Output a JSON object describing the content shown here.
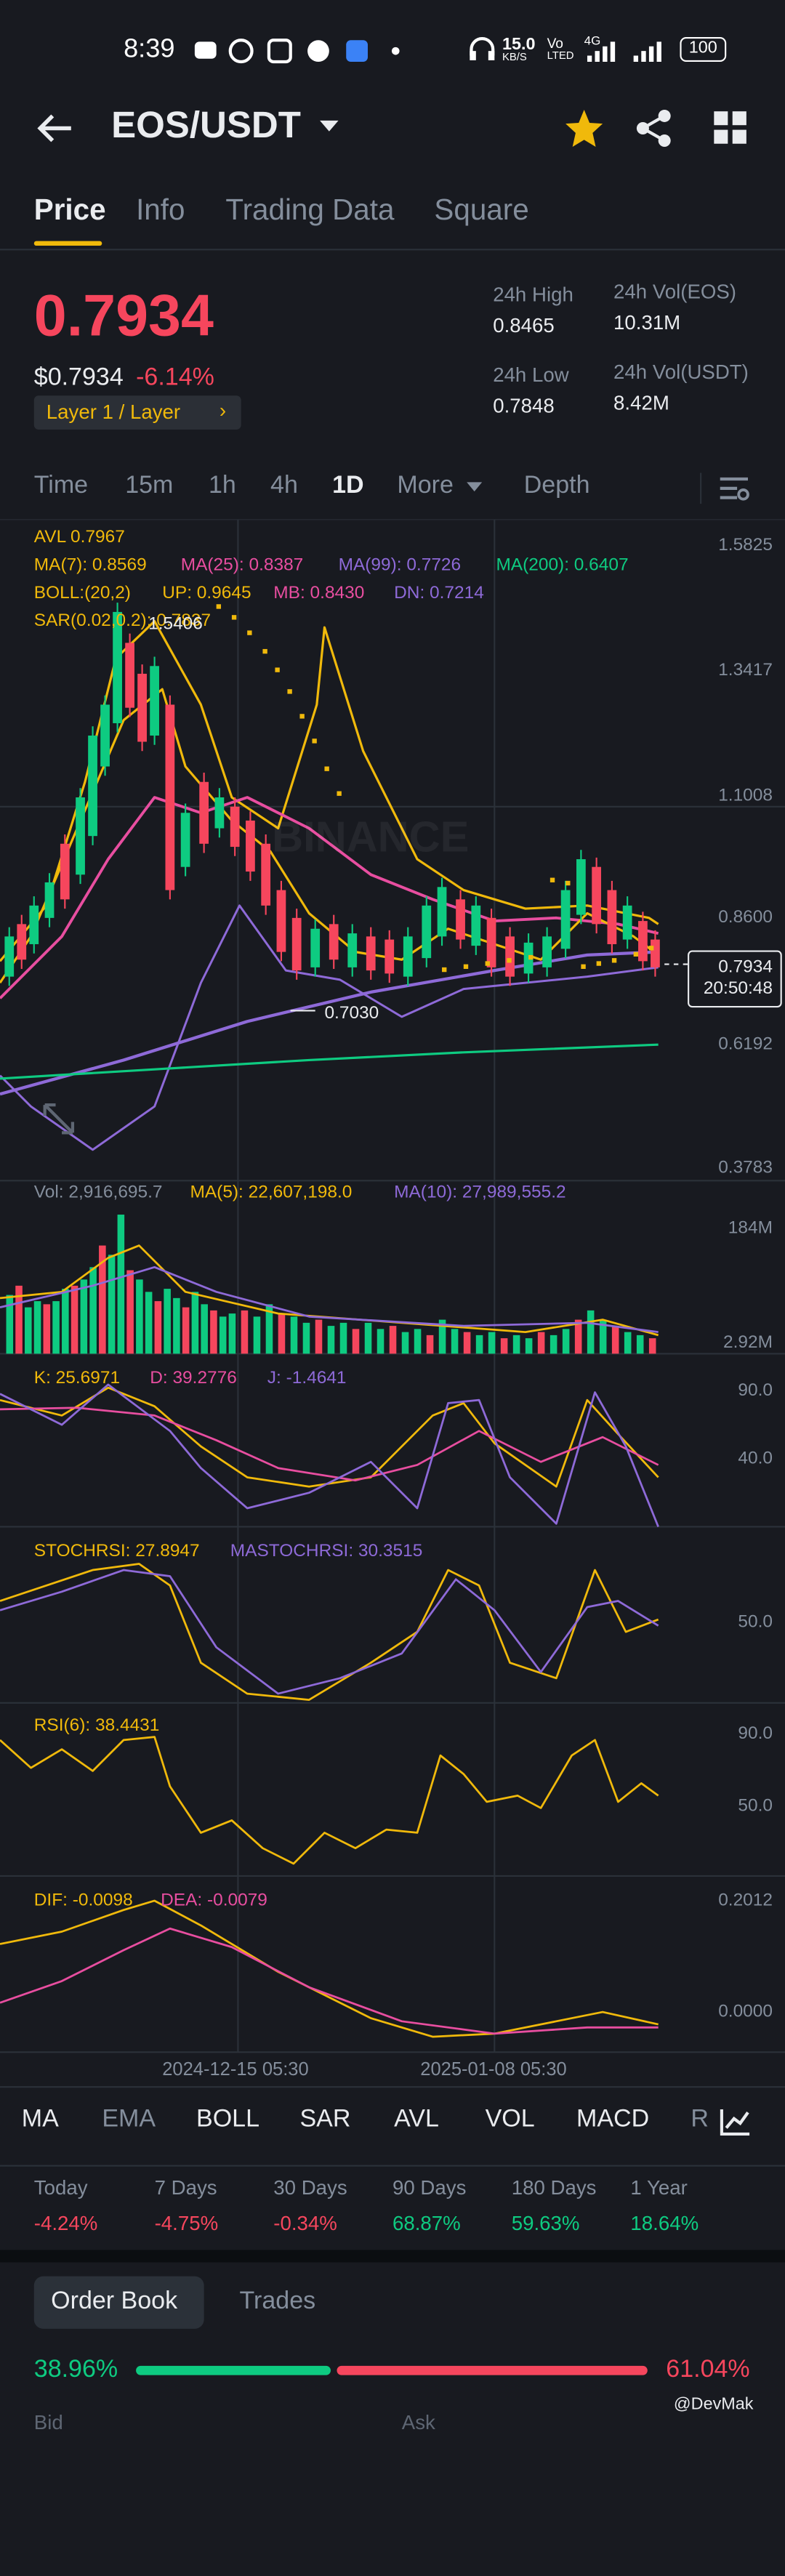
{
  "status": {
    "time": "8:39",
    "net_speed": "15.0",
    "net_unit": "KB/S",
    "vo": "Vo",
    "lted": "LTED",
    "g4": "4G",
    "battery": "100"
  },
  "header": {
    "pair": "EOS/USDT"
  },
  "tabs": [
    "Price",
    "Info",
    "Trading Data",
    "Square"
  ],
  "price": {
    "last": "0.7934",
    "usd": "$0.7934",
    "change": "-6.14%",
    "tag": "Layer 1 / Layer"
  },
  "stats": {
    "high_label": "24h High",
    "high": "0.8465",
    "low_label": "24h Low",
    "low": "0.7848",
    "vol_eos_label": "24h Vol(EOS)",
    "vol_eos": "10.31M",
    "vol_usdt_label": "24h Vol(USDT)",
    "vol_usdt": "8.42M"
  },
  "timeframes": [
    "Time",
    "15m",
    "1h",
    "4h",
    "1D",
    "More",
    "Depth"
  ],
  "legend": {
    "avl": "AVL 0.7967",
    "ma7": "MA(7): 0.8569",
    "ma25": "MA(25): 0.8387",
    "ma99": "MA(99): 0.7726",
    "ma200": "MA(200): 0.6407",
    "boll": "BOLL:(20,2)",
    "up": "UP: 0.9645",
    "mb": "MB: 0.8430",
    "dn": "DN: 0.7214",
    "sar": "SAR(0.02,0.2): 0.7837",
    "peak": "1.5406",
    "low_mark": "0.7030",
    "cur_price": "0.7934",
    "countdown": "20:50:48",
    "watermark": "BINANCE"
  },
  "price_axis": [
    "1.5825",
    "1.3417",
    "1.1008",
    "0.8600",
    "0.6192",
    "0.3783"
  ],
  "volume": {
    "vol": "Vol: 2,916,695.7",
    "ma5": "MA(5): 22,607,198.0",
    "ma10": "MA(10): 27,989,555.2",
    "ax_top": "184M",
    "ax_bot": "2.92M"
  },
  "kdj": {
    "k": "K: 25.6971",
    "d": "D: 39.2776",
    "j": "J: -1.4641",
    "ax1": "90.0",
    "ax2": "40.0"
  },
  "stochrsi": {
    "s": "STOCHRSI: 27.8947",
    "m": "MASTOCHRSI: 30.3515",
    "ax": "50.0"
  },
  "rsi": {
    "r": "RSI(6): 38.4431",
    "ax1": "90.0",
    "ax2": "50.0"
  },
  "macd": {
    "dif": "DIF: -0.0098",
    "dea": "DEA: -0.0079",
    "ax1": "0.2012",
    "ax2": "0.0000"
  },
  "dates": [
    "2024-12-15 05:30",
    "2025-01-08 05:30"
  ],
  "indicators": [
    "MA",
    "EMA",
    "BOLL",
    "SAR",
    "AVL",
    "VOL",
    "MACD",
    "R"
  ],
  "performance": [
    {
      "label": "Today",
      "value": "-4.24%"
    },
    {
      "label": "7 Days",
      "value": "-4.75%"
    },
    {
      "label": "30 Days",
      "value": "-0.34%"
    },
    {
      "label": "90 Days",
      "value": "68.87%"
    },
    {
      "label": "180 Days",
      "value": "59.63%"
    },
    {
      "label": "1 Year",
      "value": "18.64%"
    }
  ],
  "orderbook": {
    "tab1": "Order Book",
    "tab2": "Trades",
    "buy": "38.96%",
    "sell": "61.04%",
    "bid": "Bid",
    "ask": "Ask",
    "watermark": "@DevMak"
  },
  "colors": {
    "up": "#0ecb81",
    "down": "#f6465d",
    "accent": "#f0b90b",
    "purple": "#8e6ad8",
    "pink": "#e84ea0",
    "bg": "#181a20"
  }
}
